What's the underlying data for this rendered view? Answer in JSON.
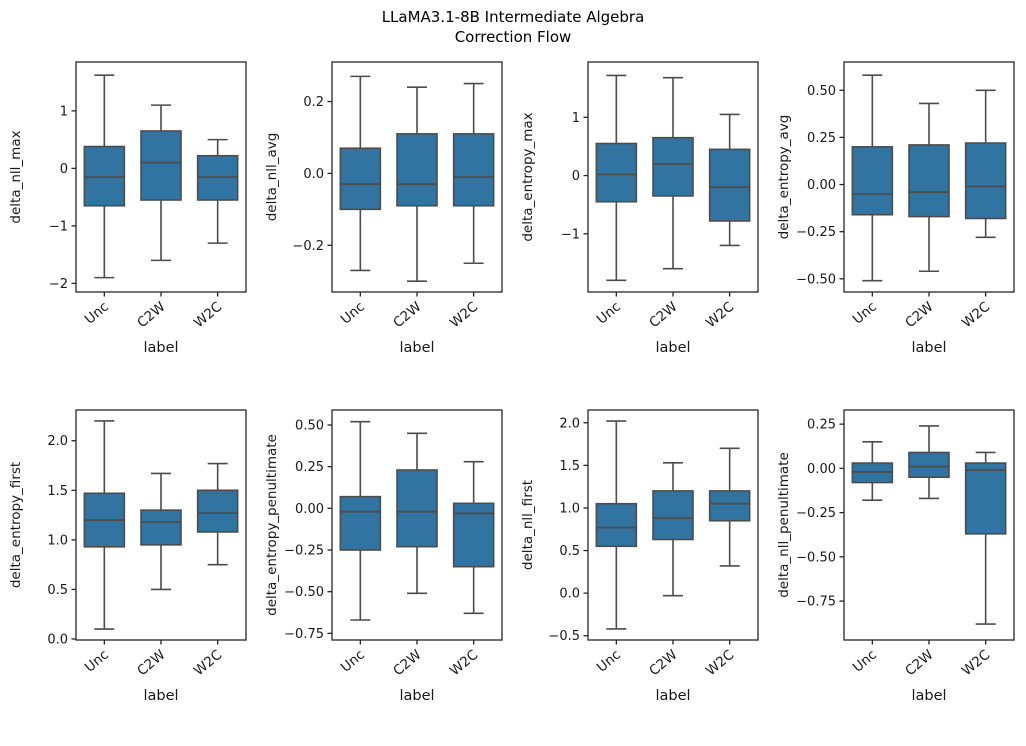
{
  "title": {
    "line1": "LLaMA3.1-8B Intermediate Algebra",
    "line2": "Correction Flow"
  },
  "xlabel": "label",
  "categories": [
    "Unc",
    "C2W",
    "W2C"
  ],
  "colors": {
    "box_fill": "#3274a1",
    "box_edge": "#4c4c4c",
    "spine": "#262626",
    "text": "#1a1a1a"
  },
  "chart_data": {
    "type": "box",
    "title": "LLaMA3.1-8B Intermediate Algebra Correction Flow",
    "xlabel": "label",
    "categories": [
      "Unc",
      "C2W",
      "W2C"
    ],
    "subplots": [
      {
        "ylabel": "delta_nll_max",
        "ylim": [
          -2.15,
          1.85
        ],
        "yticks": [
          {
            "value": 1,
            "label": "1"
          },
          {
            "value": 0,
            "label": "0"
          },
          {
            "value": -1,
            "label": "−1"
          },
          {
            "value": -2,
            "label": "−2"
          }
        ],
        "boxes": [
          {
            "category": "Unc",
            "low": -1.9,
            "q1": -0.65,
            "median": -0.15,
            "q3": 0.38,
            "high": 1.62
          },
          {
            "category": "C2W",
            "low": -1.6,
            "q1": -0.55,
            "median": 0.1,
            "q3": 0.65,
            "high": 1.1
          },
          {
            "category": "W2C",
            "low": -1.3,
            "q1": -0.55,
            "median": -0.15,
            "q3": 0.22,
            "high": 0.5
          }
        ]
      },
      {
        "ylabel": "delta_nll_avg",
        "ylim": [
          -0.33,
          0.31
        ],
        "yticks": [
          {
            "value": 0.2,
            "label": "0.2"
          },
          {
            "value": 0.0,
            "label": "0.0"
          },
          {
            "value": -0.2,
            "label": "−0.2"
          }
        ],
        "boxes": [
          {
            "category": "Unc",
            "low": -0.27,
            "q1": -0.1,
            "median": -0.03,
            "q3": 0.07,
            "high": 0.27
          },
          {
            "category": "C2W",
            "low": -0.3,
            "q1": -0.09,
            "median": -0.03,
            "q3": 0.11,
            "high": 0.24
          },
          {
            "category": "W2C",
            "low": -0.25,
            "q1": -0.09,
            "median": -0.01,
            "q3": 0.11,
            "high": 0.25
          }
        ]
      },
      {
        "ylabel": "delta_entropy_max",
        "ylim": [
          -2.0,
          1.95
        ],
        "yticks": [
          {
            "value": 1,
            "label": "1"
          },
          {
            "value": 0,
            "label": "0"
          },
          {
            "value": -1,
            "label": "−1"
          }
        ],
        "boxes": [
          {
            "category": "Unc",
            "low": -1.8,
            "q1": -0.45,
            "median": 0.02,
            "q3": 0.55,
            "high": 1.72
          },
          {
            "category": "C2W",
            "low": -1.6,
            "q1": -0.35,
            "median": 0.2,
            "q3": 0.65,
            "high": 1.68
          },
          {
            "category": "W2C",
            "low": -1.2,
            "q1": -0.78,
            "median": -0.2,
            "q3": 0.45,
            "high": 1.05
          }
        ]
      },
      {
        "ylabel": "delta_entropy_avg",
        "ylim": [
          -0.57,
          0.65
        ],
        "yticks": [
          {
            "value": 0.5,
            "label": "0.50"
          },
          {
            "value": 0.25,
            "label": "0.25"
          },
          {
            "value": 0.0,
            "label": "0.00"
          },
          {
            "value": -0.25,
            "label": "−0.25"
          },
          {
            "value": -0.5,
            "label": "−0.50"
          }
        ],
        "boxes": [
          {
            "category": "Unc",
            "low": -0.51,
            "q1": -0.16,
            "median": -0.05,
            "q3": 0.2,
            "high": 0.58
          },
          {
            "category": "C2W",
            "low": -0.46,
            "q1": -0.17,
            "median": -0.04,
            "q3": 0.21,
            "high": 0.43
          },
          {
            "category": "W2C",
            "low": -0.28,
            "q1": -0.18,
            "median": -0.01,
            "q3": 0.22,
            "high": 0.5
          }
        ]
      },
      {
        "ylabel": "delta_entropy_first",
        "ylim": [
          -0.01,
          2.31
        ],
        "yticks": [
          {
            "value": 2.0,
            "label": "2.0"
          },
          {
            "value": 1.5,
            "label": "1.5"
          },
          {
            "value": 1.0,
            "label": "1.0"
          },
          {
            "value": 0.5,
            "label": "0.5"
          },
          {
            "value": 0.0,
            "label": "0.0"
          }
        ],
        "boxes": [
          {
            "category": "Unc",
            "low": 0.1,
            "q1": 0.93,
            "median": 1.2,
            "q3": 1.47,
            "high": 2.2
          },
          {
            "category": "C2W",
            "low": 0.5,
            "q1": 0.95,
            "median": 1.18,
            "q3": 1.3,
            "high": 1.67
          },
          {
            "category": "W2C",
            "low": 0.75,
            "q1": 1.08,
            "median": 1.27,
            "q3": 1.5,
            "high": 1.77
          }
        ]
      },
      {
        "ylabel": "delta_entropy_penultimate",
        "ylim": [
          -0.79,
          0.59
        ],
        "yticks": [
          {
            "value": 0.5,
            "label": "0.50"
          },
          {
            "value": 0.25,
            "label": "0.25"
          },
          {
            "value": 0.0,
            "label": "0.00"
          },
          {
            "value": -0.25,
            "label": "−0.25"
          },
          {
            "value": -0.5,
            "label": "−0.50"
          },
          {
            "value": -0.75,
            "label": "−0.75"
          }
        ],
        "boxes": [
          {
            "category": "Unc",
            "low": -0.67,
            "q1": -0.25,
            "median": -0.02,
            "q3": 0.07,
            "high": 0.52
          },
          {
            "category": "C2W",
            "low": -0.51,
            "q1": -0.23,
            "median": -0.02,
            "q3": 0.23,
            "high": 0.45
          },
          {
            "category": "W2C",
            "low": -0.63,
            "q1": -0.35,
            "median": -0.03,
            "q3": 0.03,
            "high": 0.28
          }
        ]
      },
      {
        "ylabel": "delta_nll_first",
        "ylim": [
          -0.55,
          2.15
        ],
        "yticks": [
          {
            "value": 2.0,
            "label": "2.0"
          },
          {
            "value": 1.5,
            "label": "1.5"
          },
          {
            "value": 1.0,
            "label": "1.0"
          },
          {
            "value": 0.5,
            "label": "0.5"
          },
          {
            "value": 0.0,
            "label": "0.0"
          },
          {
            "value": -0.5,
            "label": "−0.5"
          }
        ],
        "boxes": [
          {
            "category": "Unc",
            "low": -0.42,
            "q1": 0.55,
            "median": 0.77,
            "q3": 1.05,
            "high": 2.02
          },
          {
            "category": "C2W",
            "low": -0.03,
            "q1": 0.63,
            "median": 0.88,
            "q3": 1.2,
            "high": 1.53
          },
          {
            "category": "W2C",
            "low": 0.32,
            "q1": 0.85,
            "median": 1.05,
            "q3": 1.2,
            "high": 1.7
          }
        ]
      },
      {
        "ylabel": "delta_nll_penultimate",
        "ylim": [
          -0.97,
          0.33
        ],
        "yticks": [
          {
            "value": 0.25,
            "label": "0.25"
          },
          {
            "value": 0.0,
            "label": "0.00"
          },
          {
            "value": -0.25,
            "label": "−0.25"
          },
          {
            "value": -0.5,
            "label": "−0.50"
          },
          {
            "value": -0.75,
            "label": "−0.75"
          }
        ],
        "boxes": [
          {
            "category": "Unc",
            "low": -0.18,
            "q1": -0.08,
            "median": -0.02,
            "q3": 0.03,
            "high": 0.15
          },
          {
            "category": "C2W",
            "low": -0.17,
            "q1": -0.05,
            "median": 0.01,
            "q3": 0.09,
            "high": 0.24
          },
          {
            "category": "W2C",
            "low": -0.88,
            "q1": -0.37,
            "median": -0.01,
            "q3": 0.03,
            "high": 0.09
          }
        ]
      }
    ]
  }
}
